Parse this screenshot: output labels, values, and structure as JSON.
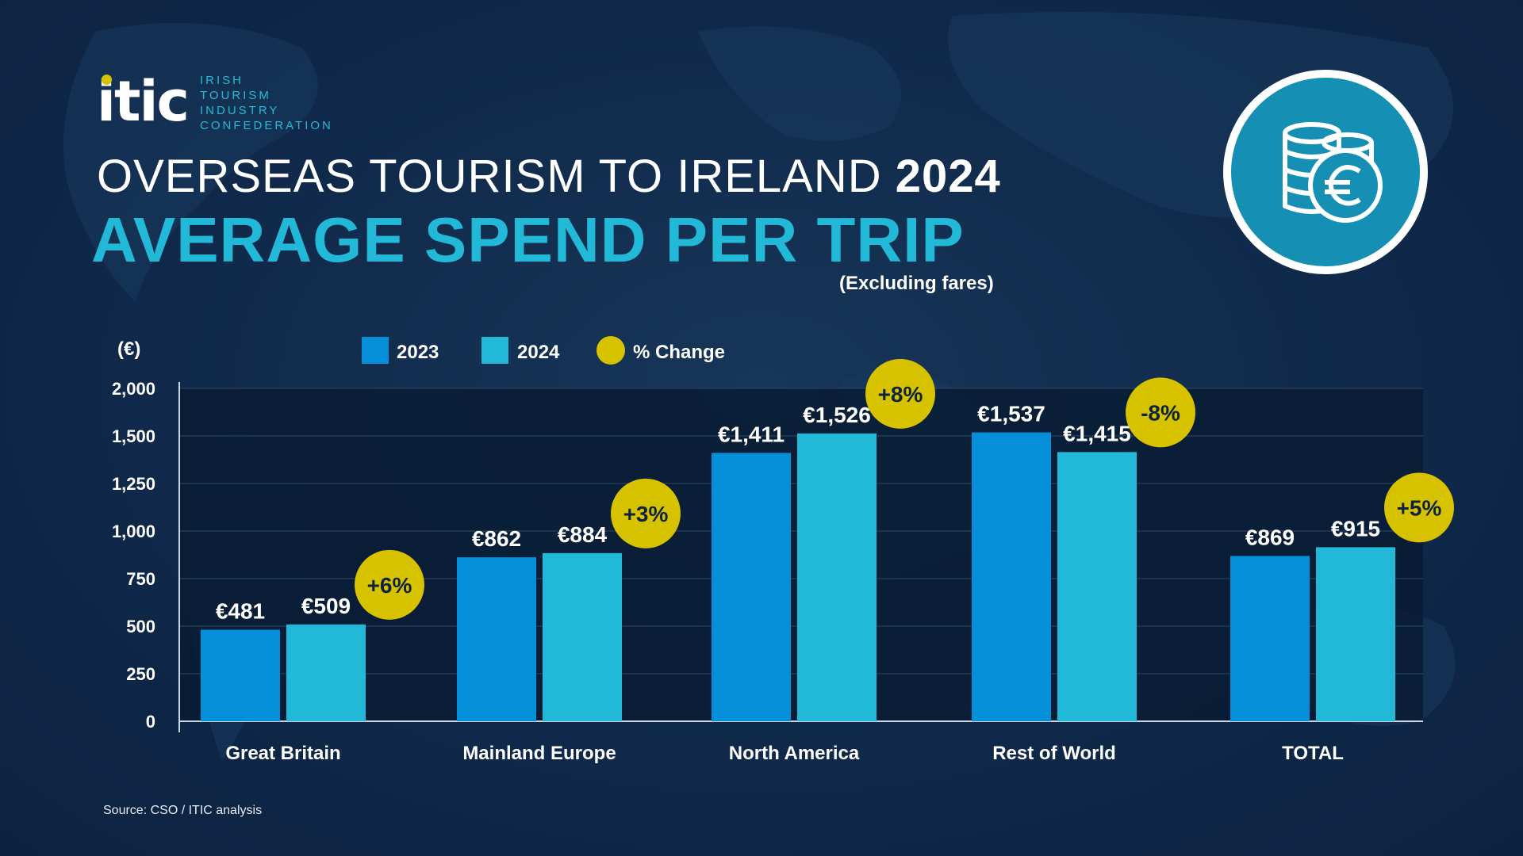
{
  "logo": {
    "wordmark": "itic",
    "lines": [
      "IRISH",
      "TOURISM",
      "INDUSTRY",
      "CONFEDERATION"
    ]
  },
  "header": {
    "title_prefix": "OVERSEAS TOURISM TO IRELAND",
    "title_year": "2024",
    "title_main": "AVERAGE SPEND PER TRIP",
    "subtitle": "(Excluding fares)"
  },
  "badge_icon": "coins-euro-icon",
  "source": "Source: CSO / ITIC analysis",
  "colors": {
    "background": "#10294a",
    "plot_area": "#081b33",
    "series_2023": "#058fd9",
    "series_2024": "#22b8d8",
    "change_badge": "#d7c200",
    "accent_title": "#22b8d8"
  },
  "chart_data": {
    "type": "bar",
    "unit_label": "(€)",
    "categories": [
      "Great Britain",
      "Mainland Europe",
      "North America",
      "Rest of World",
      "TOTAL"
    ],
    "series": [
      {
        "name": "2023",
        "values": [
          481,
          862,
          1411,
          1537,
          869
        ],
        "labels": [
          "€481",
          "€862",
          "€1,411",
          "€1,537",
          "€869"
        ]
      },
      {
        "name": "2024",
        "values": [
          509,
          884,
          1526,
          1415,
          915
        ],
        "labels": [
          "€509",
          "€884",
          "€1,526",
          "€1,415",
          "€915"
        ]
      }
    ],
    "change": {
      "name": "% Change",
      "labels": [
        "+6%",
        "+3%",
        "+8%",
        "-8%",
        "+5%"
      ]
    },
    "y_ticks": [
      0,
      250,
      500,
      750,
      1000,
      1250,
      1500,
      2000
    ],
    "y_tick_labels": [
      "0",
      "250",
      "500",
      "750",
      "1,000",
      "1,250",
      "1,500",
      "2,000"
    ],
    "y_scale_note": "axis ticks are evenly spaced as printed",
    "grid": true,
    "legend": "top-left"
  }
}
